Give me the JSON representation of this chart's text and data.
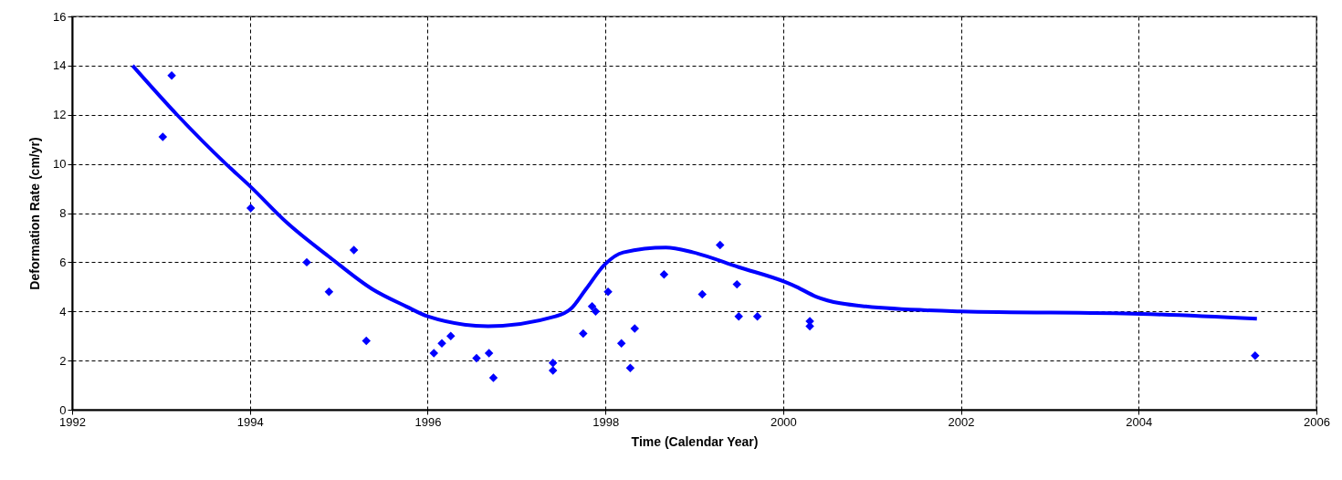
{
  "chart_data": {
    "type": "scatter",
    "xlabel": "Time (Calendar Year)",
    "ylabel": "Deformation Rate (cm/yr)",
    "xlim": [
      1992,
      2006
    ],
    "xticks": [
      1992,
      1994,
      1996,
      1998,
      2000,
      2002,
      2004,
      2006
    ],
    "ylim": [
      0,
      16
    ],
    "yticks": [
      0,
      2,
      4,
      6,
      8,
      10,
      12,
      14,
      16
    ],
    "grid": true,
    "series": [
      {
        "color": "#0000ff",
        "marker": "diamond",
        "x": [
          1993.02,
          1993.12,
          1994.01,
          1994.64,
          1994.89,
          1995.17,
          1995.31,
          1996.07,
          1996.16,
          1996.26,
          1996.55,
          1996.69,
          1996.74,
          1997.41,
          1997.41,
          1997.75,
          1997.85,
          1997.89,
          1998.03,
          1998.18,
          1998.28,
          1998.33,
          1998.66,
          1999.09,
          1999.29,
          1999.48,
          1999.5,
          1999.71,
          2000.3,
          2000.3,
          2005.31
        ],
        "values": [
          11.1,
          13.6,
          8.2,
          6.0,
          4.8,
          6.5,
          2.8,
          2.3,
          2.7,
          3.0,
          2.1,
          2.3,
          1.3,
          1.9,
          1.6,
          3.1,
          4.2,
          4.0,
          4.8,
          2.7,
          1.7,
          3.3,
          5.5,
          4.7,
          6.7,
          5.1,
          3.8,
          3.8,
          3.6,
          3.4,
          2.2
        ]
      },
      {
        "type": "line",
        "color": "#0000ff",
        "marker": "none",
        "x": [
          1992.68,
          1993.18,
          1993.73,
          1994.0,
          1994.42,
          1994.9,
          1995.38,
          1995.76,
          1996.0,
          1996.68,
          1997.44,
          1997.61,
          1997.78,
          1997.99,
          1998.2,
          1998.68,
          1998.99,
          1999.5,
          2000.02,
          2000.15,
          2000.37,
          2000.93,
          2002.0,
          2004.02,
          2005.33
        ],
        "values": [
          14.0,
          12.0,
          10.0,
          9.1,
          7.6,
          6.2,
          4.9,
          4.2,
          3.8,
          3.4,
          3.8,
          4.1,
          4.9,
          5.9,
          6.4,
          6.6,
          6.4,
          5.8,
          5.2,
          5.0,
          4.6,
          4.2,
          4.0,
          3.9,
          3.7
        ]
      }
    ]
  }
}
